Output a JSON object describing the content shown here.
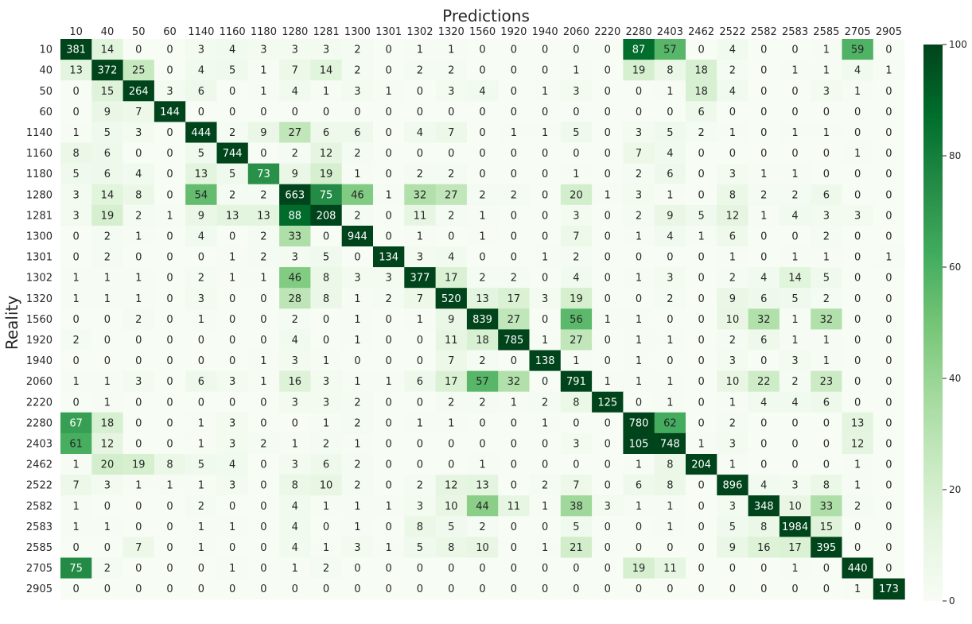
{
  "chart_data": {
    "type": "heatmap",
    "title": "Predictions",
    "xlabel": "Predictions",
    "ylabel": "Reality",
    "labels": [
      "10",
      "40",
      "50",
      "60",
      "1140",
      "1160",
      "1180",
      "1280",
      "1281",
      "1300",
      "1301",
      "1302",
      "1320",
      "1560",
      "1920",
      "1940",
      "2060",
      "2220",
      "2280",
      "2403",
      "2462",
      "2522",
      "2582",
      "2583",
      "2585",
      "2705",
      "2905"
    ],
    "colorbar": {
      "min": 0,
      "max": 100,
      "ticks": [
        0,
        20,
        40,
        60,
        80,
        100
      ],
      "cmap": "Greens"
    },
    "matrix": [
      [
        381,
        14,
        0,
        0,
        3,
        4,
        3,
        3,
        3,
        2,
        0,
        1,
        1,
        0,
        0,
        0,
        0,
        0,
        87,
        57,
        0,
        4,
        0,
        0,
        1,
        59,
        0
      ],
      [
        13,
        372,
        25,
        0,
        4,
        5,
        1,
        7,
        14,
        2,
        0,
        2,
        2,
        0,
        0,
        0,
        1,
        0,
        19,
        8,
        18,
        2,
        0,
        1,
        1,
        4,
        1
      ],
      [
        0,
        15,
        264,
        3,
        6,
        0,
        1,
        4,
        1,
        3,
        1,
        0,
        3,
        4,
        0,
        1,
        3,
        0,
        0,
        1,
        18,
        4,
        0,
        0,
        3,
        1,
        0
      ],
      [
        0,
        9,
        7,
        144,
        0,
        0,
        0,
        0,
        0,
        0,
        0,
        0,
        0,
        0,
        0,
        0,
        0,
        0,
        0,
        0,
        6,
        0,
        0,
        0,
        0,
        0,
        0
      ],
      [
        1,
        5,
        3,
        0,
        444,
        2,
        9,
        27,
        6,
        6,
        0,
        4,
        7,
        0,
        1,
        1,
        5,
        0,
        3,
        5,
        2,
        1,
        0,
        1,
        1,
        0,
        0
      ],
      [
        8,
        6,
        0,
        0,
        5,
        744,
        0,
        2,
        12,
        2,
        0,
        0,
        0,
        0,
        0,
        0,
        0,
        0,
        7,
        4,
        0,
        0,
        0,
        0,
        0,
        1,
        0
      ],
      [
        5,
        6,
        4,
        0,
        13,
        5,
        73,
        9,
        19,
        1,
        0,
        2,
        2,
        0,
        0,
        0,
        1,
        0,
        2,
        6,
        0,
        3,
        1,
        1,
        0,
        0,
        0
      ],
      [
        3,
        14,
        8,
        0,
        54,
        2,
        2,
        663,
        75,
        46,
        1,
        32,
        27,
        2,
        2,
        0,
        20,
        1,
        3,
        1,
        0,
        8,
        2,
        2,
        6,
        0,
        0
      ],
      [
        3,
        19,
        2,
        1,
        9,
        13,
        13,
        88,
        208,
        2,
        0,
        11,
        2,
        1,
        0,
        0,
        3,
        0,
        2,
        9,
        5,
        12,
        1,
        4,
        3,
        3,
        0
      ],
      [
        0,
        2,
        1,
        0,
        4,
        0,
        2,
        33,
        0,
        944,
        0,
        1,
        0,
        1,
        0,
        0,
        7,
        0,
        1,
        4,
        1,
        6,
        0,
        0,
        2,
        0,
        0
      ],
      [
        0,
        2,
        0,
        0,
        0,
        1,
        2,
        3,
        5,
        0,
        134,
        3,
        4,
        0,
        0,
        1,
        2,
        0,
        0,
        0,
        0,
        1,
        0,
        1,
        1,
        0,
        1
      ],
      [
        1,
        1,
        1,
        0,
        2,
        1,
        1,
        46,
        8,
        3,
        3,
        377,
        17,
        2,
        2,
        0,
        4,
        0,
        1,
        3,
        0,
        2,
        4,
        14,
        5,
        0,
        0
      ],
      [
        1,
        1,
        1,
        0,
        3,
        0,
        0,
        28,
        8,
        1,
        2,
        7,
        520,
        13,
        17,
        3,
        19,
        0,
        0,
        2,
        0,
        9,
        6,
        5,
        2,
        0,
        0
      ],
      [
        0,
        0,
        2,
        0,
        1,
        0,
        0,
        2,
        0,
        1,
        0,
        1,
        9,
        839,
        27,
        0,
        56,
        1,
        1,
        0,
        0,
        10,
        32,
        1,
        32,
        0,
        0
      ],
      [
        2,
        0,
        0,
        0,
        0,
        0,
        0,
        4,
        0,
        1,
        0,
        0,
        11,
        18,
        785,
        1,
        27,
        0,
        1,
        1,
        0,
        2,
        6,
        1,
        1,
        0,
        0
      ],
      [
        0,
        0,
        0,
        0,
        0,
        0,
        1,
        3,
        1,
        0,
        0,
        0,
        7,
        2,
        0,
        138,
        1,
        0,
        1,
        0,
        0,
        3,
        0,
        3,
        1,
        0,
        0
      ],
      [
        1,
        1,
        3,
        0,
        6,
        3,
        1,
        16,
        3,
        1,
        1,
        6,
        17,
        57,
        32,
        0,
        791,
        1,
        1,
        1,
        0,
        10,
        22,
        2,
        23,
        0,
        0
      ],
      [
        0,
        1,
        0,
        0,
        0,
        0,
        0,
        3,
        3,
        2,
        0,
        0,
        2,
        2,
        1,
        2,
        8,
        125,
        0,
        1,
        0,
        1,
        4,
        4,
        6,
        0,
        0
      ],
      [
        67,
        18,
        0,
        0,
        1,
        3,
        0,
        0,
        1,
        2,
        0,
        1,
        1,
        0,
        0,
        1,
        0,
        0,
        780,
        62,
        0,
        2,
        0,
        0,
        0,
        13,
        0
      ],
      [
        61,
        12,
        0,
        0,
        1,
        3,
        2,
        1,
        2,
        1,
        0,
        0,
        0,
        0,
        0,
        0,
        3,
        0,
        105,
        748,
        1,
        3,
        0,
        0,
        0,
        12,
        0
      ],
      [
        1,
        20,
        19,
        8,
        5,
        4,
        0,
        3,
        6,
        2,
        0,
        0,
        0,
        1,
        0,
        0,
        0,
        0,
        1,
        8,
        204,
        1,
        0,
        0,
        0,
        1,
        0
      ],
      [
        7,
        3,
        1,
        1,
        1,
        3,
        0,
        8,
        10,
        2,
        0,
        2,
        12,
        13,
        0,
        2,
        7,
        0,
        6,
        8,
        0,
        896,
        4,
        3,
        8,
        1,
        0
      ],
      [
        1,
        0,
        0,
        0,
        2,
        0,
        0,
        4,
        1,
        1,
        1,
        3,
        10,
        44,
        11,
        1,
        38,
        3,
        1,
        1,
        0,
        3,
        348,
        10,
        33,
        2,
        0
      ],
      [
        1,
        1,
        0,
        0,
        1,
        1,
        0,
        4,
        0,
        1,
        0,
        8,
        5,
        2,
        0,
        0,
        5,
        0,
        0,
        1,
        0,
        5,
        8,
        1984,
        15,
        0,
        0
      ],
      [
        0,
        0,
        7,
        0,
        1,
        0,
        0,
        4,
        1,
        3,
        1,
        5,
        8,
        10,
        0,
        1,
        21,
        0,
        0,
        0,
        0,
        9,
        16,
        17,
        395,
        0,
        0
      ],
      [
        75,
        2,
        0,
        0,
        0,
        1,
        0,
        1,
        2,
        0,
        0,
        0,
        0,
        0,
        0,
        0,
        0,
        0,
        19,
        11,
        0,
        0,
        0,
        1,
        0,
        440,
        0
      ],
      [
        0,
        0,
        0,
        0,
        0,
        0,
        0,
        0,
        0,
        0,
        0,
        0,
        0,
        0,
        0,
        0,
        0,
        0,
        0,
        0,
        0,
        0,
        0,
        0,
        0,
        1,
        173
      ]
    ]
  }
}
